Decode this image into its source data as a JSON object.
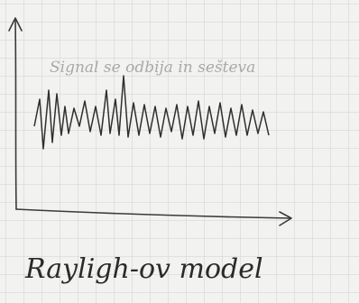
{
  "annotation": "Signal se odbija in sešteva",
  "caption": "Rayligh-ov model"
}
